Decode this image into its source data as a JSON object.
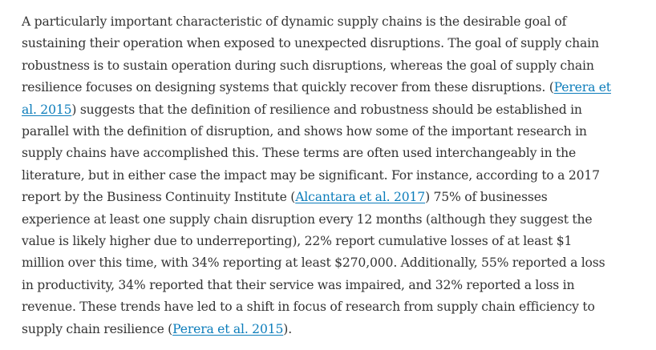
{
  "article": {
    "paragraph": {
      "lines": [
        [
          "A particularly important characteristic of dynamic supply chains is the desirable goal of"
        ],
        [
          "sustaining their operation when exposed to unexpected disruptions. The goal of supply chain"
        ],
        [
          "robustness is to sustain operation during such disruptions, whereas the goal of supply chain"
        ],
        [
          "resilience focuses on designing systems that quickly recover from these disruptions. (",
          "Perera et"
        ],
        [
          "al. 2015",
          ") suggests that the definition of resilience and robustness should be established in"
        ],
        [
          "parallel with the definition of disruption, and shows how some of the important research in"
        ],
        [
          "supply chains have accomplished this. These terms are often used interchangeably in the"
        ],
        [
          "literature, but in either case the impact may be significant. For instance, according to a 2017"
        ],
        [
          "report by the Business Continuity Institute (",
          "Alcantara et al. 2017",
          ") 75% of businesses"
        ],
        [
          "experience at least one supply chain disruption every 12 months (although they suggest the"
        ],
        [
          "value is likely higher due to underreporting), 22% report cumulative losses of at least $1"
        ],
        [
          "million over this time, with 34% reporting at least $270,000. Additionally, 55% reported a loss"
        ],
        [
          "in productivity, 34% reported that their service was impaired, and 32% reported a loss in"
        ],
        [
          "revenue. These trends have led to a shift in focus of research from supply chain efficiency to"
        ],
        [
          "supply chain resilience (",
          "Perera et al. 2015",
          ")."
        ]
      ]
    }
  },
  "colors": {
    "text": "#333333",
    "link": "#0c7dbb",
    "background": "#ffffff"
  }
}
